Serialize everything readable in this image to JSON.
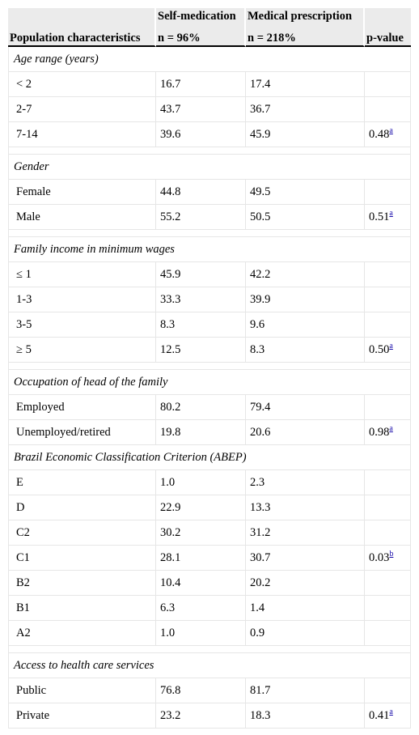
{
  "header": {
    "row1": {
      "col2": "Self-medication",
      "col3": "Medical prescription"
    },
    "row2": {
      "col1": "Population characteristics",
      "col2": "n = 96%",
      "col3": "n = 218%",
      "col4": "p-value"
    }
  },
  "sections": [
    {
      "title": "Age range (years)",
      "rows": [
        {
          "label": "< 2",
          "self": "16.7",
          "medical": "17.4",
          "p": "",
          "note": ""
        },
        {
          "label": "2-7",
          "self": "43.7",
          "medical": "36.7",
          "p": "",
          "note": ""
        },
        {
          "label": "7-14",
          "self": "39.6",
          "medical": "45.9",
          "p": "0.48",
          "note": "a"
        }
      ]
    },
    {
      "title": "Gender",
      "rows": [
        {
          "label": "Female",
          "self": "44.8",
          "medical": "49.5",
          "p": "",
          "note": ""
        },
        {
          "label": "Male",
          "self": "55.2",
          "medical": "50.5",
          "p": "0.51",
          "note": "a"
        }
      ]
    },
    {
      "title": "Family income in minimum wages",
      "rows": [
        {
          "label": "≤ 1",
          "self": "45.9",
          "medical": "42.2",
          "p": "",
          "note": ""
        },
        {
          "label": "1-3",
          "self": "33.3",
          "medical": "39.9",
          "p": "",
          "note": ""
        },
        {
          "label": "3-5",
          "self": "8.3",
          "medical": "9.6",
          "p": "",
          "note": ""
        },
        {
          "label": "≥ 5",
          "self": "12.5",
          "medical": "8.3",
          "p": "0.50",
          "note": "a"
        }
      ]
    },
    {
      "title": "Occupation of head of the family",
      "rows": [
        {
          "label": "Employed",
          "self": "80.2",
          "medical": "79.4",
          "p": "",
          "note": ""
        },
        {
          "label": "Unemployed/retired",
          "self": "19.8",
          "medical": "20.6",
          "p": "0.98",
          "note": "a"
        }
      ]
    },
    {
      "title": "Brazil Economic Classification Criterion (ABEP)",
      "rows": [
        {
          "label": "E",
          "self": "1.0",
          "medical": "2.3",
          "p": "",
          "note": ""
        },
        {
          "label": "D",
          "self": "22.9",
          "medical": "13.3",
          "p": "",
          "note": ""
        },
        {
          "label": "C2",
          "self": "30.2",
          "medical": "31.2",
          "p": "",
          "note": ""
        },
        {
          "label": "C1",
          "self": "28.1",
          "medical": "30.7",
          "p": "0.03",
          "note": "b"
        },
        {
          "label": "B2",
          "self": "10.4",
          "medical": "20.2",
          "p": "",
          "note": ""
        },
        {
          "label": "B1",
          "self": "6.3",
          "medical": "1.4",
          "p": "",
          "note": ""
        },
        {
          "label": "A2",
          "self": "1.0",
          "medical": "0.9",
          "p": "",
          "note": ""
        }
      ]
    },
    {
      "title": "Access to health care services",
      "rows": [
        {
          "label": "Public",
          "self": "76.8",
          "medical": "81.7",
          "p": "",
          "note": ""
        },
        {
          "label": "Private",
          "self": "23.2",
          "medical": "18.3",
          "p": "0.41",
          "note": "a"
        }
      ]
    }
  ]
}
